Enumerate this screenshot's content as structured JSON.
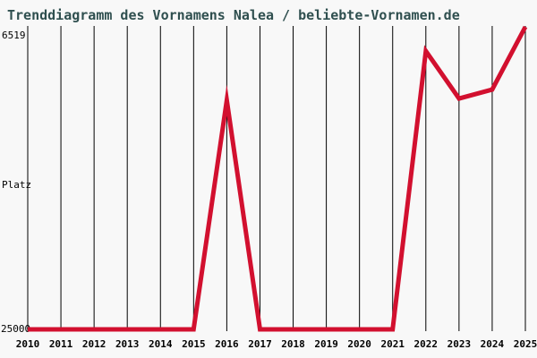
{
  "page": {
    "background_color": "#f8f8f8"
  },
  "header": {
    "title": "Trenddiagramm des Vornamens Nalea / beliebte-Vornamen.de",
    "title_color": "#2f4f4f"
  },
  "chart_data": {
    "type": "line",
    "title": "Trenddiagramm des Vornamens Nalea / beliebte-Vornamen.de",
    "x": [
      "2010",
      "2011",
      "2012",
      "2013",
      "2014",
      "2015",
      "2016",
      "2017",
      "2018",
      "2019",
      "2020",
      "2021",
      "2022",
      "2023",
      "2024",
      "2025"
    ],
    "series": [
      {
        "name": "Nalea",
        "values": [
          25000,
          25000,
          25000,
          25000,
          25000,
          25000,
          11000,
          25000,
          25000,
          25000,
          25000,
          25000,
          8000,
          10900,
          10350,
          6519
        ]
      }
    ],
    "xlabel": "",
    "ylabel": "Platz",
    "ylim": [
      6519,
      25000
    ],
    "y_axis_inverted": true,
    "y_tick_labels": [
      "6519",
      "25000"
    ],
    "grid": "vertical-year-gridlines",
    "legend": "none",
    "line_color": "#d2102f",
    "line_width": 5,
    "grid_color": "#000000",
    "text_color": "#000000"
  }
}
